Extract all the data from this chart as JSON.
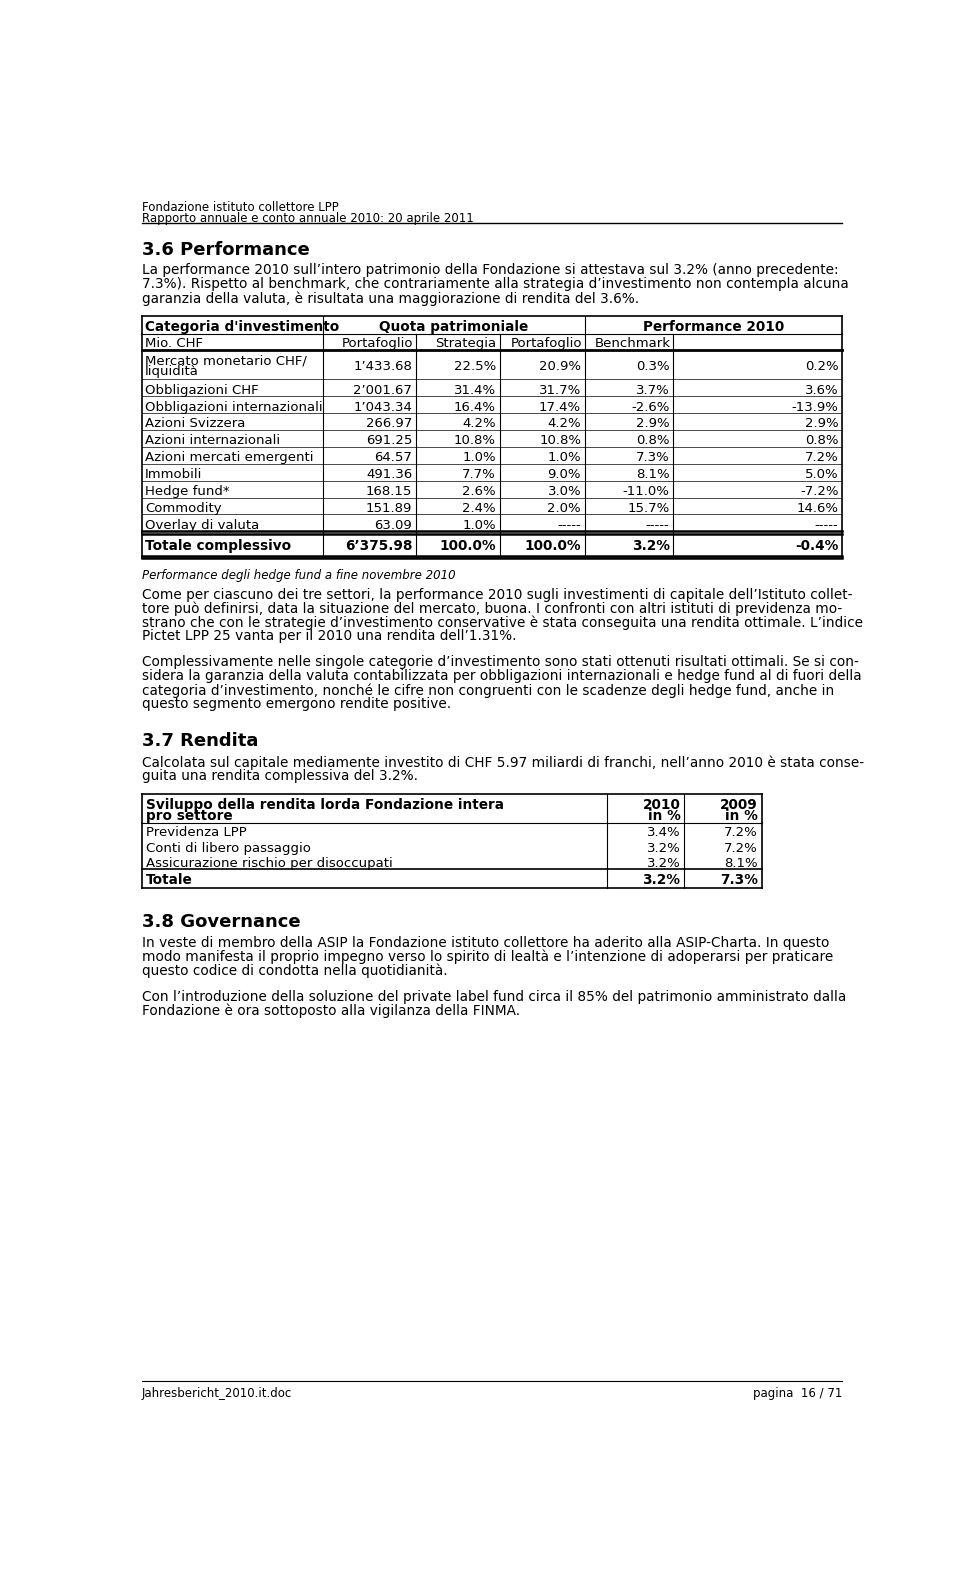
{
  "header_line1": "Fondazione istituto collettore LPP",
  "header_line2": "Rapporto annuale e conto annuale 2010: 20 aprile 2011",
  "section_title": "3.6 Performance",
  "para1_lines": [
    "La performance 2010 sull’intero patrimonio della Fondazione si attestava sul 3.2% (anno precedente:",
    "7.3%). Rispetto al benchmark, che contrariamente alla strategia d’investimento non contempla alcuna",
    "garanzia della valuta, è risultata una maggiorazione di rendita del 3.6%."
  ],
  "table1_rows": [
    [
      "Mercato monetario CHF/\nliquidità",
      "1’433.68",
      "22.5%",
      "20.9%",
      "0.3%",
      "0.2%"
    ],
    [
      "Obbligazioni CHF",
      "2’001.67",
      "31.4%",
      "31.7%",
      "3.7%",
      "3.6%"
    ],
    [
      "Obbligazioni internazionali",
      "1’043.34",
      "16.4%",
      "17.4%",
      "-2.6%",
      "-13.9%"
    ],
    [
      "Azioni Svizzera",
      "266.97",
      "4.2%",
      "4.2%",
      "2.9%",
      "2.9%"
    ],
    [
      "Azioni internazionali",
      "691.25",
      "10.8%",
      "10.8%",
      "0.8%",
      "0.8%"
    ],
    [
      "Azioni mercati emergenti",
      "64.57",
      "1.0%",
      "1.0%",
      "7.3%",
      "7.2%"
    ],
    [
      "Immobili",
      "491.36",
      "7.7%",
      "9.0%",
      "8.1%",
      "5.0%"
    ],
    [
      "Hedge fund*",
      "168.15",
      "2.6%",
      "3.0%",
      "-11.0%",
      "-7.2%"
    ],
    [
      "Commodity",
      "151.89",
      "2.4%",
      "2.0%",
      "15.7%",
      "14.6%"
    ],
    [
      "Overlay di valuta",
      "63.09",
      "1.0%",
      "-----",
      "-----",
      "-----"
    ]
  ],
  "table1_total_row": [
    "Totale complessivo",
    "6’375.98",
    "100.0%",
    "100.0%",
    "3.2%",
    "-0.4%"
  ],
  "table1_note": "Performance degli hedge fund a fine novembre 2010",
  "para2_lines": [
    "Come per ciascuno dei tre settori, la performance 2010 sugli investimenti di capitale dell’Istituto collet-",
    "tore può definirsi, data la situazione del mercato, buona. I confronti con altri istituti di previdenza mo-",
    "strano che con le strategie d’investimento conservative è stata conseguita una rendita ottimale. L’indice",
    "Pictet LPP 25 vanta per il 2010 una rendita dell’1.31%."
  ],
  "para3_lines": [
    "Complessivamente nelle singole categorie d’investimento sono stati ottenuti risultati ottimali. Se si con-",
    "sidera la garanzia della valuta contabilizzata per obbligazioni internazionali e hedge fund al di fuori della",
    "categoria d’investimento, nonché le cifre non congruenti con le scadenze degli hedge fund, anche in",
    "questo segmento emergono rendite positive."
  ],
  "section2_title": "3.7 Rendita",
  "para4_lines": [
    "Calcolata sul capitale mediamente investito di CHF 5.97 miliardi di franchi, nell’anno 2010 è stata conse-",
    "guita una rendita complessiva del 3.2%."
  ],
  "table2_rows": [
    [
      "Previdenza LPP",
      "3.4%",
      "7.2%"
    ],
    [
      "Conti di libero passaggio",
      "3.2%",
      "7.2%"
    ],
    [
      "Assicurazione rischio per disoccupati",
      "3.2%",
      "8.1%"
    ]
  ],
  "table2_total": [
    "Totale",
    "3.2%",
    "7.3%"
  ],
  "section3_title": "3.8 Governance",
  "para5_lines": [
    "In veste di membro della ASIP la Fondazione istituto collettore ha aderito alla ASIP-Charta. In questo",
    "modo manifesta il proprio impegno verso lo spirito di lealtà e l’intenzione di adoperarsi per praticare",
    "questo codice di condotta nella quotidianità."
  ],
  "para6_lines": [
    "Con l’introduzione della soluzione del private label fund circa il 85% del patrimonio amministrato dalla",
    "Fondazione è ora sottoposto alla vigilanza della FINMA."
  ],
  "footer_left": "Jahresbericht_2010.it.doc",
  "footer_right": "pagina  16 / 71",
  "bg_color": "#ffffff"
}
